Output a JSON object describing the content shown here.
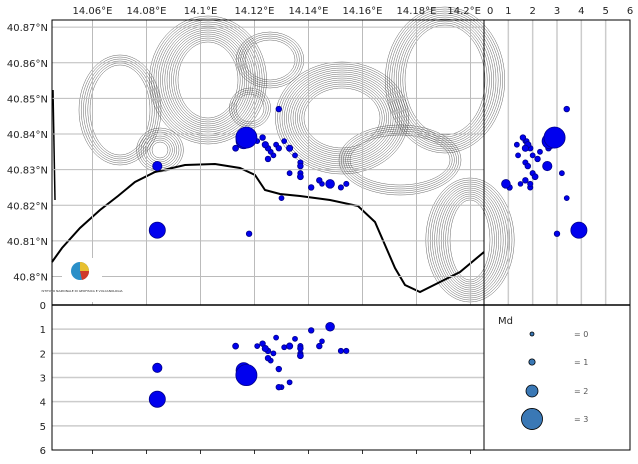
{
  "chart_data": {
    "type": "scatter",
    "map": {
      "lon_ticks": [
        "14.06°E",
        "14.08°E",
        "14.1°E",
        "14.12°E",
        "14.14°E",
        "14.16°E",
        "14.18°E",
        "14.2°E"
      ],
      "lon_values": [
        14.06,
        14.08,
        14.1,
        14.12,
        14.14,
        14.16,
        14.18,
        14.2
      ],
      "lat_ticks": [
        "40.87°N",
        "40.86°N",
        "40.85°N",
        "40.84°N",
        "40.83°N",
        "40.82°N",
        "40.81°N",
        "40.8°N"
      ],
      "lat_values": [
        40.87,
        40.86,
        40.85,
        40.84,
        40.83,
        40.82,
        40.81,
        40.8
      ],
      "lon_range": [
        14.045,
        14.205
      ],
      "lat_range": [
        40.792,
        40.872
      ],
      "grid": true,
      "logo_text": "ISTITUTO NAZIONALE DI GEOFISICA E VULCANOLOGIA"
    },
    "depth_section_lon": {
      "y_ticks": [
        "0",
        "1",
        "2",
        "3",
        "4",
        "5",
        "6"
      ],
      "depth_range": [
        0,
        6
      ],
      "grid": true
    },
    "depth_section_lat": {
      "x_ticks": [
        "0",
        "1",
        "2",
        "3",
        "4",
        "5",
        "6"
      ],
      "depth_range": [
        0,
        6
      ],
      "grid": true
    },
    "legend": {
      "title": "Md",
      "entries": [
        {
          "md": 0,
          "label": "= 0"
        },
        {
          "md": 1,
          "label": "= 1"
        },
        {
          "md": 2,
          "label": "= 2"
        },
        {
          "md": 3,
          "label": "= 3"
        }
      ],
      "color": "#3a78b5"
    },
    "marker_color": "#0000ee",
    "marker_edge": "#00008b",
    "events": [
      {
        "lon": 14.117,
        "lat": 40.839,
        "depth": 2.9,
        "md": 3.0
      },
      {
        "lon": 14.116,
        "lat": 40.838,
        "depth": 2.7,
        "md": 2.4
      },
      {
        "lon": 14.084,
        "lat": 40.813,
        "depth": 3.9,
        "md": 2.5
      },
      {
        "lon": 14.084,
        "lat": 40.831,
        "depth": 2.6,
        "md": 1.6
      },
      {
        "lon": 14.118,
        "lat": 40.812,
        "depth": 3.0,
        "md": 0.8
      },
      {
        "lon": 14.129,
        "lat": 40.847,
        "depth": 3.4,
        "md": 0.8
      },
      {
        "lon": 14.148,
        "lat": 40.826,
        "depth": 0.9,
        "md": 1.5
      },
      {
        "lon": 14.141,
        "lat": 40.825,
        "depth": 1.05,
        "md": 0.8
      },
      {
        "lon": 14.152,
        "lat": 40.825,
        "depth": 1.9,
        "md": 0.7
      },
      {
        "lon": 14.154,
        "lat": 40.826,
        "depth": 1.9,
        "md": 0.7
      },
      {
        "lon": 14.113,
        "lat": 40.836,
        "depth": 1.7,
        "md": 0.9
      },
      {
        "lon": 14.121,
        "lat": 40.838,
        "depth": 1.7,
        "md": 0.6
      },
      {
        "lon": 14.123,
        "lat": 40.839,
        "depth": 1.6,
        "md": 0.8
      },
      {
        "lon": 14.124,
        "lat": 40.837,
        "depth": 1.8,
        "md": 1.0
      },
      {
        "lon": 14.125,
        "lat": 40.836,
        "depth": 1.9,
        "md": 0.8
      },
      {
        "lon": 14.127,
        "lat": 40.834,
        "depth": 2.0,
        "md": 0.6
      },
      {
        "lon": 14.125,
        "lat": 40.833,
        "depth": 2.2,
        "md": 0.8
      },
      {
        "lon": 14.126,
        "lat": 40.835,
        "depth": 2.3,
        "md": 0.6
      },
      {
        "lon": 14.128,
        "lat": 40.837,
        "depth": 1.35,
        "md": 0.6
      },
      {
        "lon": 14.131,
        "lat": 40.838,
        "depth": 1.75,
        "md": 0.6
      },
      {
        "lon": 14.133,
        "lat": 40.836,
        "depth": 1.7,
        "md": 1.0
      },
      {
        "lon": 14.135,
        "lat": 40.834,
        "depth": 1.4,
        "md": 0.6
      },
      {
        "lon": 14.137,
        "lat": 40.832,
        "depth": 1.7,
        "md": 0.7
      },
      {
        "lon": 14.137,
        "lat": 40.831,
        "depth": 1.8,
        "md": 0.8
      },
      {
        "lon": 14.137,
        "lat": 40.829,
        "depth": 2.0,
        "md": 0.7
      },
      {
        "lon": 14.137,
        "lat": 40.828,
        "depth": 2.1,
        "md": 0.9
      },
      {
        "lon": 14.145,
        "lat": 40.826,
        "depth": 1.5,
        "md": 0.5
      },
      {
        "lon": 14.144,
        "lat": 40.827,
        "depth": 1.7,
        "md": 0.8
      },
      {
        "lon": 14.129,
        "lat": 40.836,
        "depth": 2.65,
        "md": 0.8
      },
      {
        "lon": 14.13,
        "lat": 40.822,
        "depth": 3.4,
        "md": 0.6
      },
      {
        "lon": 14.133,
        "lat": 40.829,
        "depth": 3.2,
        "md": 0.6
      }
    ]
  }
}
